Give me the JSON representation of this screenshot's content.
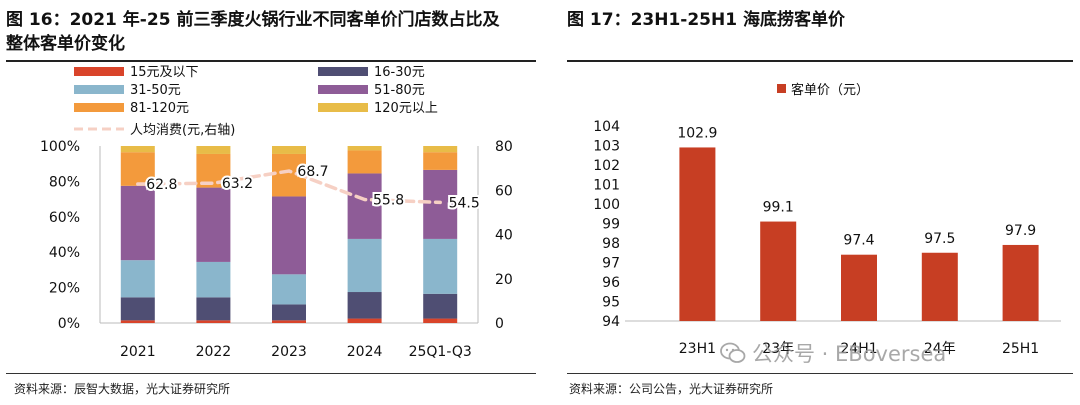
{
  "figure16": {
    "title_line1": "图 16：2021 年-25 前三季度火锅行业不同客单价门店数占比及",
    "title_line2": "整体客单价变化",
    "source": "资料来源：辰智大数据，光大证券研究所"
  },
  "figure17": {
    "title": "图 17：23H1-25H1 海底捞客单价",
    "source": "资料来源：公司公告，光大证券研究所"
  },
  "watermark": "公众号 · EBoversea",
  "chart_data": [
    {
      "type": "bar",
      "stacked": true,
      "categories": [
        "2021",
        "2022",
        "2023",
        "2024",
        "25Q1-Q3"
      ],
      "series": [
        {
          "name": "15元及以下",
          "color": "#d9442a",
          "values": [
            1.5,
            1.5,
            1.5,
            2.5,
            2.5
          ]
        },
        {
          "name": "16-30元",
          "color": "#4f4e73",
          "values": [
            13,
            13,
            9,
            15,
            14
          ]
        },
        {
          "name": "31-50元",
          "color": "#8ab6cc",
          "values": [
            21,
            20,
            17,
            30,
            31
          ]
        },
        {
          "name": "51-80元",
          "color": "#8e5c97",
          "values": [
            42,
            42,
            44,
            37,
            39
          ]
        },
        {
          "name": "81-120元",
          "color": "#f39a3c",
          "values": [
            19,
            19,
            24,
            13,
            10
          ]
        },
        {
          "name": "120元以上",
          "color": "#e8bc48",
          "values": [
            3.5,
            4.5,
            4.5,
            2.5,
            3.5
          ]
        }
      ],
      "line_series": {
        "name": "人均消费(元,右轴)",
        "color": "#f6d0c4",
        "values": [
          62.8,
          63.2,
          68.7,
          55.8,
          54.5
        ]
      },
      "y_left": {
        "ticks": [
          "0%",
          "20%",
          "40%",
          "60%",
          "80%",
          "100%"
        ],
        "range": [
          0,
          100
        ]
      },
      "y_right": {
        "ticks": [
          "0",
          "20",
          "40",
          "60",
          "80"
        ],
        "range": [
          0,
          80
        ]
      },
      "legend_position": "top"
    },
    {
      "type": "bar",
      "categories": [
        "23H1",
        "23年",
        "24H1",
        "24年",
        "25H1"
      ],
      "series": [
        {
          "name": "客单价（元）",
          "color": "#c73e23",
          "values": [
            102.9,
            99.1,
            97.4,
            97.5,
            97.9
          ]
        }
      ],
      "ylim": [
        94,
        104
      ],
      "yticks": [
        "94",
        "95",
        "96",
        "97",
        "98",
        "99",
        "100",
        "101",
        "102",
        "103",
        "104"
      ],
      "legend_position": "top"
    }
  ]
}
